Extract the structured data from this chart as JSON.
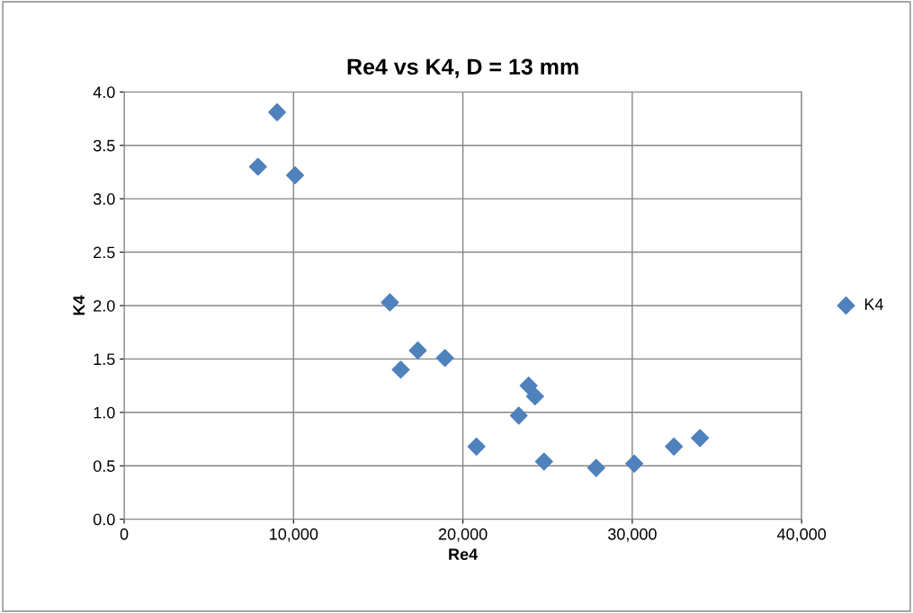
{
  "chart_data": {
    "type": "scatter",
    "title": "Re4 vs K4, D = 13 mm",
    "xlabel": "Re4",
    "ylabel": "K4",
    "series": [
      {
        "name": "K4",
        "color": "#4f81bd",
        "x": [
          7900,
          9030,
          10090,
          15690,
          16330,
          17340,
          18940,
          20800,
          23300,
          23880,
          24260,
          24790,
          27870,
          30120,
          32460,
          34000
        ],
        "values": [
          3.3,
          3.81,
          3.22,
          2.03,
          1.4,
          1.58,
          1.51,
          0.68,
          0.97,
          1.25,
          1.15,
          0.54,
          0.48,
          0.52,
          0.68,
          0.76
        ]
      }
    ],
    "xlim": [
      0,
      40000
    ],
    "xticks": [
      {
        "value": 0,
        "label": "0"
      },
      {
        "value": 10000,
        "label": "10,000"
      },
      {
        "value": 20000,
        "label": "20,000"
      },
      {
        "value": 30000,
        "label": "30,000"
      },
      {
        "value": 40000,
        "label": "40,000"
      }
    ],
    "ylim": [
      0,
      4
    ],
    "yticks": [
      {
        "value": 0,
        "label": "0.0"
      },
      {
        "value": 0.5,
        "label": "0.5"
      },
      {
        "value": 1,
        "label": "1.0"
      },
      {
        "value": 1.5,
        "label": "1.5"
      },
      {
        "value": 2,
        "label": "2.0"
      },
      {
        "value": 2.5,
        "label": "2.5"
      },
      {
        "value": 3,
        "label": "3.0"
      },
      {
        "value": 3.5,
        "label": "3.5"
      },
      {
        "value": 4,
        "label": "4.0"
      }
    ],
    "grid": true,
    "legend": "right",
    "marker": "diamond"
  }
}
